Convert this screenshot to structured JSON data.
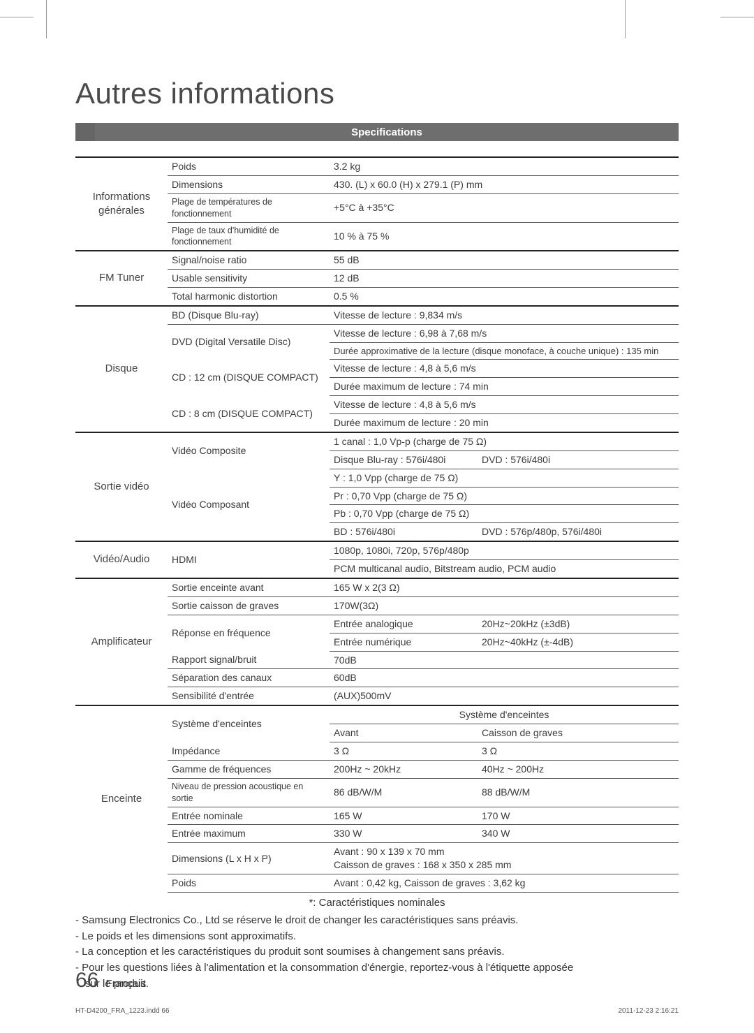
{
  "page": {
    "title": "Autres informations",
    "section_header": "Specifications",
    "page_number": "66",
    "page_lang": "Français",
    "footer_left": "HT-D4200_FRA_1223.indd   66",
    "footer_right": "2011-12-23    2:16:21",
    "footnote": "*: Caractéristiques nominales",
    "notes": [
      "- Samsung Electronics Co., Ltd se réserve le droit de changer les caractéristiques sans préavis.",
      "- Le poids et les dimensions sont approximatifs.",
      "- La conception et les caractéristiques du produit sont soumises à changement sans préavis.",
      "- Pour les questions liées à l'alimentation et la consommation d'énergie, reportez-vous à l'étiquette apposée",
      "sur le produit."
    ]
  },
  "colors": {
    "bar_bg": "#6e6e6e",
    "bar_accent": "#666666",
    "text": "#333333",
    "rule": "#555555",
    "rule_heavy": "#222222"
  },
  "spec": {
    "general": {
      "cat": "Informations générales",
      "weight_l": "Poids",
      "weight_v": "3.2 kg",
      "dim_l": "Dimensions",
      "dim_v": "430. (L) x 60.0 (H) x 279.1 (P) mm",
      "temp_l": "Plage de températures de fonctionnement",
      "temp_v": "+5°C à +35°C",
      "hum_l": "Plage de taux d'humidité de fonctionnement",
      "hum_v": "10 % à 75 %"
    },
    "fm": {
      "cat": "FM Tuner",
      "sn_l": "Signal/noise ratio",
      "sn_v": "55 dB",
      "us_l": "Usable sensitivity",
      "us_v": "12 dB",
      "thd_l": "Total harmonic distortion",
      "thd_v": "0.5 %"
    },
    "disc": {
      "cat": "Disque",
      "bd_l": "BD (Disque Blu-ray)",
      "bd_v": "Vitesse de lecture : 9,834 m/s",
      "dvd_l": "DVD (Digital Versatile Disc)",
      "dvd_v1": "Vitesse de lecture : 6,98 à 7,68 m/s",
      "dvd_v2": "Durée approximative de la lecture (disque monoface, à couche unique) : 135 min",
      "cd12_l": "CD : 12 cm (DISQUE COMPACT)",
      "cd12_v1": "Vitesse de lecture : 4,8 à 5,6 m/s",
      "cd12_v2": "Durée maximum de lecture : 74 min",
      "cd8_l": "CD : 8 cm (DISQUE COMPACT)",
      "cd8_v1": "Vitesse de lecture : 4,8 à 5,6 m/s",
      "cd8_v2": "Durée maximum de lecture : 20 min"
    },
    "video": {
      "cat": "Sortie vidéo",
      "comp_l": "Vidéo Composite",
      "comp_v1": "1 canal : 1,0 Vp-p (charge de 75 Ω)",
      "comp_v2a": "Disque Blu-ray : 576i/480i",
      "comp_v2b": "DVD : 576i/480i",
      "ypbpr_l": "Vidéo Composant",
      "y_v": "Y : 1,0 Vpp (charge de 75 Ω)",
      "pr_v": "Pr : 0,70 Vpp (charge de 75 Ω)",
      "pb_v": "Pb : 0,70 Vpp (charge de 75 Ω)",
      "res_a": "BD : 576i/480i",
      "res_b": "DVD : 576p/480p, 576i/480i"
    },
    "hdmi": {
      "cat": "Vidéo/Audio",
      "l": "HDMI",
      "v1": "1080p, 1080i, 720p, 576p/480p",
      "v2": "PCM multicanal audio, Bitstream audio, PCM audio"
    },
    "amp": {
      "cat": "Amplificateur",
      "front_l": "Sortie enceinte avant",
      "front_v": "165 W x 2(3 Ω)",
      "sub_l": "Sortie caisson de graves",
      "sub_v": "170W(3Ω)",
      "freq_l": "Réponse en fréquence",
      "freq_a_l": "Entrée analogique",
      "freq_a_v": "20Hz~20kHz (±3dB)",
      "freq_d_l": "Entrée numérique",
      "freq_d_v": "20Hz~40kHz (±-4dB)",
      "snr_l": "Rapport signal/bruit",
      "snr_v": "70dB",
      "sep_l": "Séparation des canaux",
      "sep_v": "60dB",
      "sens_l": "Sensibilité d'entrée",
      "sens_v": "(AUX)500mV"
    },
    "spk": {
      "cat": "Enceinte",
      "sys_l": "Système d'enceintes",
      "sys_h": "Système d'enceintes",
      "col_front": "Avant",
      "col_sub": "Caisson de graves",
      "imp_l": "Impédance",
      "imp_f": "3 Ω",
      "imp_s": "3 Ω",
      "frng_l": "Gamme de fréquences",
      "frng_f": "200Hz ~ 20kHz",
      "frng_s": "40Hz ~ 200Hz",
      "spl_l": "Niveau de pression acoustique en sortie",
      "spl_f": "86 dB/W/M",
      "spl_s": "88 dB/W/M",
      "nin_l": "Entrée nominale",
      "nin_f": "165 W",
      "nin_s": "170 W",
      "max_l": "Entrée maximum",
      "max_f": "330 W",
      "max_s": "340 W",
      "dim_l": "Dimensions (L x H x P)",
      "dim_v1": "Avant : 90 x 139 x 70 mm",
      "dim_v2": "Caisson de graves : 168 x 350 x 285 mm",
      "w_l": "Poids",
      "w_v": "Avant : 0,42 kg,  Caisson de graves : 3,62 kg"
    }
  }
}
